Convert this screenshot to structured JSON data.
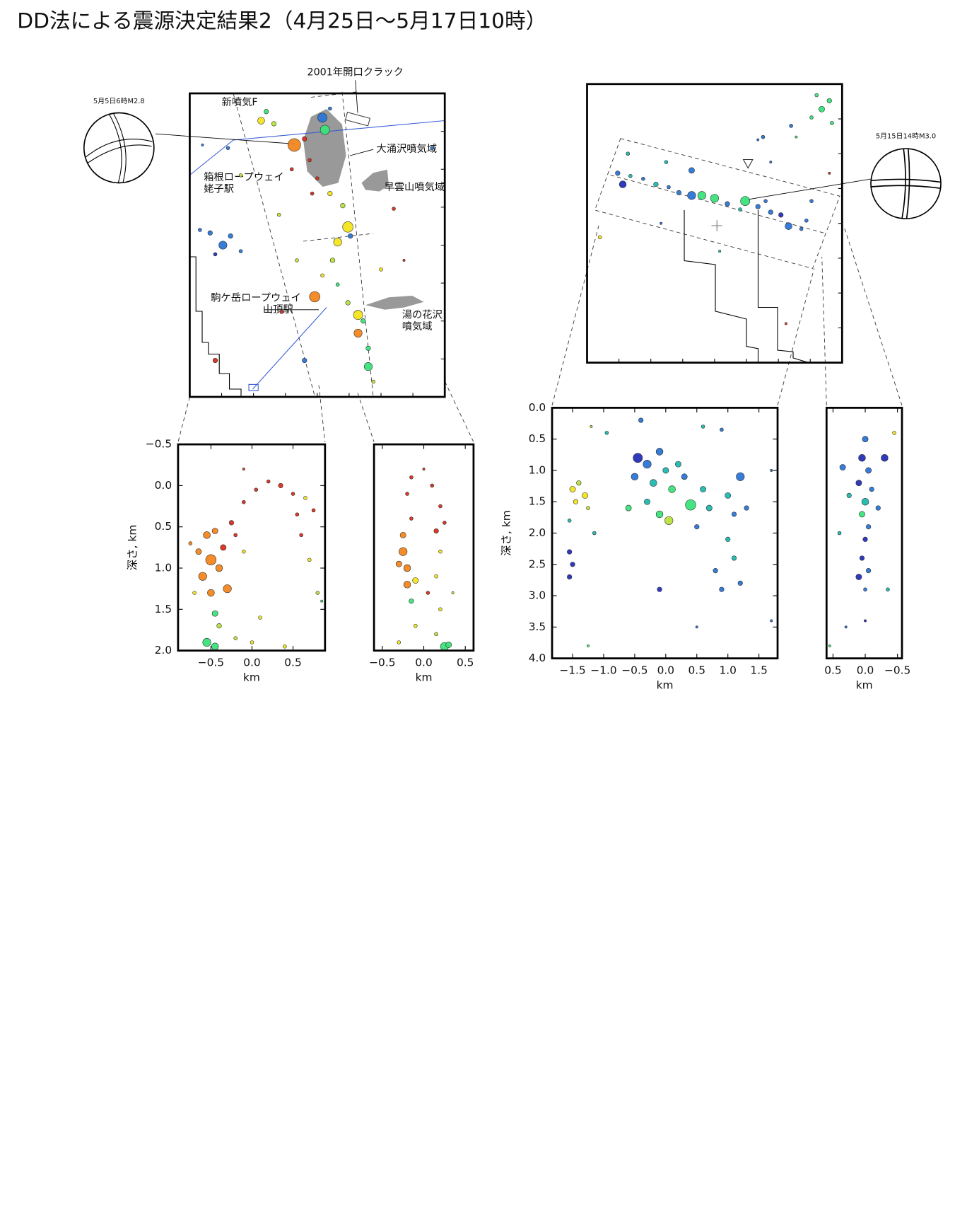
{
  "title": "DD法による震源決定結果2（4月25日～5月17日10時）",
  "palette": [
    "#d9301c",
    "#f2861f",
    "#f3e41d",
    "#b9e33b",
    "#3be37a",
    "#20b8b0",
    "#2c75d4",
    "#2530b8"
  ],
  "left_map": {
    "labels": [
      "2001年開口クラック",
      "新噴気F",
      "大涌沢噴気域",
      "箱根ロープウェイ",
      "姥子駅",
      "早雲山噴気域",
      "駒ケ岳ロープウェイ",
      "山頂駅",
      "湯の花沢",
      "噴気域"
    ],
    "mechanism_label": "5月5日6時M2.8",
    "points": [
      [
        0.41,
        0.17,
        11,
        1
      ],
      [
        0.49,
        0.67,
        9,
        1
      ],
      [
        0.52,
        0.08,
        8,
        6
      ],
      [
        0.53,
        0.12,
        8,
        4
      ],
      [
        0.28,
        0.09,
        6,
        2
      ],
      [
        0.62,
        0.44,
        9,
        2
      ],
      [
        0.58,
        0.49,
        7,
        2
      ],
      [
        0.66,
        0.73,
        8,
        2
      ],
      [
        0.66,
        0.79,
        7,
        1
      ],
      [
        0.7,
        0.9,
        7,
        4
      ],
      [
        0.13,
        0.5,
        7,
        6
      ],
      [
        0.08,
        0.46,
        4,
        6
      ],
      [
        0.16,
        0.47,
        4,
        6
      ],
      [
        0.04,
        0.45,
        3,
        6
      ],
      [
        0.2,
        0.52,
        3,
        6
      ],
      [
        0.1,
        0.53,
        3,
        7
      ],
      [
        0.3,
        0.06,
        4,
        4
      ],
      [
        0.33,
        0.1,
        4,
        3
      ],
      [
        0.45,
        0.15,
        4,
        0
      ],
      [
        0.47,
        0.22,
        3,
        0
      ],
      [
        0.5,
        0.28,
        3,
        0
      ],
      [
        0.55,
        0.33,
        4,
        2
      ],
      [
        0.6,
        0.37,
        4,
        3
      ],
      [
        0.63,
        0.47,
        4,
        6
      ],
      [
        0.56,
        0.55,
        4,
        3
      ],
      [
        0.52,
        0.6,
        3,
        2
      ],
      [
        0.58,
        0.63,
        3,
        4
      ],
      [
        0.62,
        0.69,
        4,
        3
      ],
      [
        0.68,
        0.75,
        4,
        4
      ],
      [
        0.7,
        0.84,
        4,
        4
      ],
      [
        0.72,
        0.95,
        3,
        3
      ],
      [
        0.4,
        0.25,
        3,
        0
      ],
      [
        0.48,
        0.33,
        3,
        0
      ],
      [
        0.8,
        0.38,
        3,
        0
      ],
      [
        0.84,
        0.55,
        2,
        0
      ],
      [
        0.1,
        0.88,
        4,
        0
      ],
      [
        0.45,
        0.88,
        4,
        6
      ],
      [
        0.75,
        0.58,
        3,
        2
      ],
      [
        0.15,
        0.18,
        3,
        6
      ],
      [
        0.05,
        0.17,
        2,
        6
      ],
      [
        0.35,
        0.4,
        3,
        3
      ],
      [
        0.95,
        0.18,
        3,
        6
      ],
      [
        0.55,
        0.05,
        3,
        6
      ],
      [
        0.42,
        0.55,
        3,
        3
      ],
      [
        0.36,
        0.72,
        3,
        0
      ],
      [
        0.2,
        0.27,
        3,
        3
      ]
    ]
  },
  "left_sections": [
    {
      "ylabel": "深さ, km",
      "xlabel": "km",
      "xlim": [
        -0.9,
        0.89
      ],
      "ylim": [
        -0.5,
        2.0
      ],
      "xticks": [
        {
          "value": -0.5,
          "label": "−0.5"
        },
        {
          "value": 0,
          "label": "0.0"
        },
        0.5
      ],
      "yticks": [
        {
          "value": -0.5,
          "label": "−0.5"
        },
        {
          "value": 0,
          "label": "0.0"
        },
        0.5,
        {
          "value": 1,
          "label": "1.0"
        },
        1.5,
        {
          "value": 2,
          "label": "2.0"
        }
      ],
      "points": [
        [
          -0.55,
          0.6,
          6,
          1
        ],
        [
          -0.45,
          0.55,
          5,
          1
        ],
        [
          -0.5,
          0.9,
          9,
          1
        ],
        [
          -0.6,
          1.1,
          7,
          1
        ],
        [
          -0.4,
          1.0,
          6,
          1
        ],
        [
          -0.5,
          1.3,
          6,
          1
        ],
        [
          -0.3,
          1.25,
          7,
          1
        ],
        [
          -0.65,
          0.8,
          5,
          1
        ],
        [
          -0.35,
          0.75,
          5,
          0
        ],
        [
          -0.25,
          0.45,
          4,
          0
        ],
        [
          -0.1,
          0.2,
          3,
          0
        ],
        [
          0.05,
          0.05,
          3,
          0
        ],
        [
          0.2,
          -0.05,
          3,
          0
        ],
        [
          0.35,
          0.0,
          4,
          0
        ],
        [
          0.5,
          0.1,
          3,
          0
        ],
        [
          0.65,
          0.15,
          3,
          2
        ],
        [
          0.75,
          0.3,
          3,
          0
        ],
        [
          0.6,
          0.6,
          3,
          0
        ],
        [
          0.7,
          0.9,
          3,
          2
        ],
        [
          0.8,
          1.3,
          3,
          3
        ],
        [
          -0.2,
          0.6,
          3,
          0
        ],
        [
          -0.1,
          0.8,
          3,
          2
        ],
        [
          -0.45,
          1.55,
          5,
          4
        ],
        [
          -0.4,
          1.7,
          4,
          3
        ],
        [
          -0.55,
          1.9,
          7,
          4
        ],
        [
          -0.45,
          1.95,
          6,
          4
        ],
        [
          0.0,
          1.9,
          3,
          2
        ],
        [
          0.1,
          1.6,
          3,
          2
        ],
        [
          -0.1,
          -0.2,
          2,
          0
        ],
        [
          0.55,
          0.35,
          3,
          0
        ],
        [
          -0.75,
          0.7,
          3,
          1
        ],
        [
          -0.7,
          1.3,
          3,
          2
        ],
        [
          0.85,
          1.4,
          2,
          4
        ],
        [
          0.4,
          1.95,
          3,
          2
        ],
        [
          -0.2,
          1.85,
          3,
          3
        ]
      ]
    },
    {
      "xlabel": "km",
      "xlim": [
        -0.6,
        0.6
      ],
      "ylim": [
        -0.5,
        2.0
      ],
      "xticks": [
        {
          "value": -0.5,
          "label": "−0.5"
        },
        {
          "value": 0,
          "label": "0.0"
        },
        0.5
      ],
      "points": [
        [
          -0.25,
          0.8,
          7,
          1
        ],
        [
          -0.2,
          1.0,
          6,
          1
        ],
        [
          -0.3,
          0.95,
          5,
          1
        ],
        [
          -0.2,
          1.2,
          6,
          1
        ],
        [
          -0.25,
          0.6,
          5,
          1
        ],
        [
          -0.15,
          0.4,
          3,
          0
        ],
        [
          -0.2,
          0.1,
          3,
          0
        ],
        [
          -0.15,
          -0.1,
          3,
          0
        ],
        [
          0.1,
          0.0,
          3,
          0
        ],
        [
          0.2,
          0.25,
          3,
          0
        ],
        [
          0.15,
          0.55,
          4,
          0
        ],
        [
          0.2,
          0.8,
          3,
          2
        ],
        [
          0.15,
          1.1,
          3,
          2
        ],
        [
          0.2,
          1.5,
          3,
          2
        ],
        [
          0.15,
          1.8,
          3,
          3
        ],
        [
          0.25,
          1.95,
          7,
          4
        ],
        [
          0.3,
          1.93,
          5,
          4
        ],
        [
          -0.15,
          1.4,
          4,
          4
        ],
        [
          -0.1,
          1.7,
          3,
          2
        ],
        [
          0.05,
          1.3,
          3,
          0
        ],
        [
          0.25,
          0.45,
          3,
          0
        ],
        [
          -0.1,
          1.15,
          5,
          2
        ],
        [
          0.0,
          -0.2,
          2,
          0
        ],
        [
          -0.3,
          1.9,
          3,
          2
        ],
        [
          0.35,
          1.3,
          2,
          3
        ]
      ]
    }
  ],
  "right_map": {
    "mechanism_label": "5月15日14時M3.0",
    "points": [
      [
        0.41,
        0.4,
        7,
        6
      ],
      [
        0.45,
        0.4,
        7,
        4
      ],
      [
        0.5,
        0.41,
        7,
        4
      ],
      [
        0.62,
        0.42,
        8,
        4
      ],
      [
        0.79,
        0.51,
        6,
        6
      ],
      [
        0.41,
        0.31,
        5,
        6
      ],
      [
        0.92,
        0.09,
        5,
        4
      ],
      [
        0.14,
        0.36,
        6,
        7
      ],
      [
        0.12,
        0.32,
        4,
        6
      ],
      [
        0.17,
        0.33,
        3,
        5
      ],
      [
        0.22,
        0.34,
        3,
        6
      ],
      [
        0.27,
        0.36,
        4,
        5
      ],
      [
        0.32,
        0.37,
        3,
        6
      ],
      [
        0.36,
        0.39,
        4,
        6
      ],
      [
        0.55,
        0.43,
        4,
        6
      ],
      [
        0.67,
        0.44,
        4,
        6
      ],
      [
        0.72,
        0.46,
        4,
        6
      ],
      [
        0.76,
        0.47,
        4,
        7
      ],
      [
        0.84,
        0.52,
        3,
        6
      ],
      [
        0.86,
        0.49,
        3,
        6
      ],
      [
        0.6,
        0.45,
        3,
        5
      ],
      [
        0.7,
        0.42,
        3,
        6
      ],
      [
        0.95,
        0.06,
        4,
        4
      ],
      [
        0.88,
        0.12,
        3,
        4
      ],
      [
        0.96,
        0.14,
        3,
        4
      ],
      [
        0.9,
        0.04,
        3,
        4
      ],
      [
        0.69,
        0.19,
        3,
        6
      ],
      [
        0.67,
        0.2,
        2,
        6
      ],
      [
        0.8,
        0.15,
        3,
        6
      ],
      [
        0.82,
        0.19,
        2,
        4
      ],
      [
        0.72,
        0.28,
        2,
        6
      ],
      [
        0.05,
        0.55,
        3,
        2
      ],
      [
        0.31,
        0.28,
        3,
        5
      ],
      [
        0.16,
        0.25,
        3,
        5
      ],
      [
        0.88,
        0.42,
        3,
        6
      ],
      [
        0.29,
        0.5,
        2,
        6
      ],
      [
        0.95,
        0.32,
        2,
        0
      ],
      [
        0.78,
        0.86,
        2,
        0
      ],
      [
        0.52,
        0.6,
        2,
        5
      ]
    ]
  },
  "right_sections": [
    {
      "ylabel": "深さ, km",
      "xlabel": "km",
      "xlim": [
        -1.83,
        1.8
      ],
      "ylim": [
        0,
        4
      ],
      "xticks": [
        {
          "value": -1.5,
          "label": "−1.5"
        },
        {
          "value": -1,
          "label": "−1.0"
        },
        {
          "value": -0.5,
          "label": "−0.5"
        },
        {
          "value": 0,
          "label": "0.0"
        },
        0.5,
        {
          "value": 1,
          "label": "1.0"
        },
        1.5
      ],
      "yticks": [
        {
          "value": 0,
          "label": "0.0"
        },
        0.5,
        {
          "value": 1,
          "label": "1.0"
        },
        1.5,
        {
          "value": 2,
          "label": "2.0"
        },
        2.5,
        {
          "value": 3,
          "label": "3.0"
        },
        3.5,
        {
          "value": 4,
          "label": "4.0"
        }
      ],
      "points": [
        [
          -1.5,
          1.3,
          5,
          2
        ],
        [
          -1.45,
          1.5,
          4,
          2
        ],
        [
          -1.4,
          1.2,
          4,
          3
        ],
        [
          -1.3,
          1.4,
          5,
          2
        ],
        [
          -1.25,
          1.6,
          3,
          3
        ],
        [
          -1.55,
          1.8,
          3,
          5
        ],
        [
          -1.55,
          2.3,
          4,
          7
        ],
        [
          -1.5,
          2.5,
          4,
          7
        ],
        [
          -1.55,
          2.7,
          4,
          7
        ],
        [
          -0.45,
          0.8,
          8,
          7
        ],
        [
          -0.3,
          0.9,
          7,
          6
        ],
        [
          -0.5,
          1.1,
          6,
          6
        ],
        [
          -0.2,
          1.2,
          6,
          5
        ],
        [
          -0.1,
          0.7,
          6,
          6
        ],
        [
          0.0,
          1.0,
          5,
          5
        ],
        [
          0.1,
          1.3,
          6,
          4
        ],
        [
          0.2,
          0.9,
          5,
          5
        ],
        [
          0.3,
          1.1,
          5,
          6
        ],
        [
          0.4,
          1.55,
          9,
          4
        ],
        [
          0.6,
          1.3,
          5,
          5
        ],
        [
          0.7,
          1.6,
          5,
          5
        ],
        [
          -0.3,
          1.5,
          5,
          5
        ],
        [
          -0.6,
          1.6,
          5,
          4
        ],
        [
          -0.1,
          1.7,
          6,
          4
        ],
        [
          0.05,
          1.8,
          7,
          3
        ],
        [
          0.5,
          1.9,
          4,
          6
        ],
        [
          1.2,
          1.1,
          7,
          6
        ],
        [
          1.0,
          1.4,
          5,
          5
        ],
        [
          1.1,
          1.7,
          4,
          6
        ],
        [
          1.3,
          1.6,
          4,
          6
        ],
        [
          1.0,
          2.1,
          4,
          5
        ],
        [
          1.1,
          2.4,
          4,
          5
        ],
        [
          0.8,
          2.6,
          4,
          6
        ],
        [
          1.2,
          2.8,
          4,
          6
        ],
        [
          0.9,
          2.9,
          4,
          6
        ],
        [
          -0.1,
          2.9,
          4,
          7
        ],
        [
          -0.4,
          0.2,
          4,
          6
        ],
        [
          -0.95,
          0.4,
          3,
          5
        ],
        [
          0.6,
          0.3,
          3,
          5
        ],
        [
          0.9,
          0.35,
          3,
          6
        ],
        [
          -1.15,
          2.0,
          3,
          5
        ],
        [
          -1.2,
          0.3,
          2,
          3
        ],
        [
          1.7,
          1.0,
          2,
          6
        ],
        [
          0.5,
          3.5,
          2,
          6
        ],
        [
          -1.25,
          3.8,
          2,
          4
        ],
        [
          1.7,
          3.4,
          2,
          6
        ]
      ]
    },
    {
      "xlabel": "km",
      "xlim": [
        0.6,
        -0.57
      ],
      "ylim": [
        0,
        4
      ],
      "xticks": [
        0.5,
        {
          "value": 0,
          "label": "0.0"
        },
        {
          "value": -0.5,
          "label": "−0.5"
        }
      ],
      "points": [
        [
          0.0,
          0.5,
          5,
          6
        ],
        [
          0.05,
          0.8,
          6,
          7
        ],
        [
          -0.05,
          1.0,
          5,
          6
        ],
        [
          0.1,
          1.2,
          5,
          7
        ],
        [
          -0.1,
          1.3,
          4,
          6
        ],
        [
          0.0,
          1.5,
          6,
          5
        ],
        [
          0.05,
          1.7,
          5,
          4
        ],
        [
          -0.05,
          1.9,
          4,
          6
        ],
        [
          0.0,
          2.1,
          4,
          7
        ],
        [
          0.05,
          2.4,
          4,
          7
        ],
        [
          -0.05,
          2.6,
          4,
          6
        ],
        [
          0.0,
          2.9,
          3,
          6
        ],
        [
          0.1,
          2.7,
          5,
          7
        ],
        [
          -0.3,
          0.8,
          6,
          7
        ],
        [
          0.35,
          0.95,
          5,
          6
        ],
        [
          -0.45,
          0.4,
          3,
          2
        ],
        [
          0.4,
          2.0,
          3,
          5
        ],
        [
          -0.35,
          2.9,
          3,
          5
        ],
        [
          0.3,
          3.5,
          2,
          6
        ],
        [
          0.0,
          3.4,
          2,
          7
        ],
        [
          0.55,
          3.8,
          2,
          4
        ],
        [
          0.25,
          1.4,
          4,
          5
        ],
        [
          -0.2,
          1.6,
          4,
          6
        ]
      ]
    }
  ]
}
